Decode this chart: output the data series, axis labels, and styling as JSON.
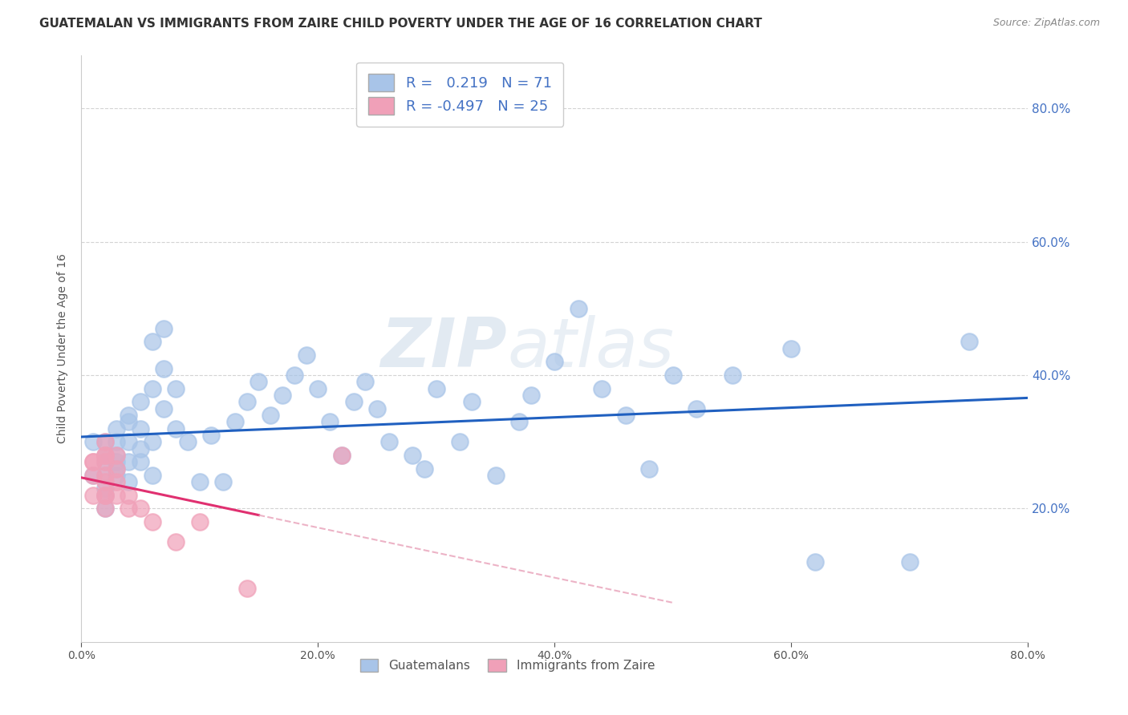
{
  "title": "GUATEMALAN VS IMMIGRANTS FROM ZAIRE CHILD POVERTY UNDER THE AGE OF 16 CORRELATION CHART",
  "source": "Source: ZipAtlas.com",
  "ylabel": "Child Poverty Under the Age of 16",
  "R_guatemalan": 0.219,
  "N_guatemalan": 71,
  "R_zaire": -0.497,
  "N_zaire": 25,
  "guatemalan_color": "#a8c4e8",
  "zaire_color": "#f0a0b8",
  "guatemalan_line_color": "#2060c0",
  "zaire_line_color": "#e03070",
  "zaire_dash_color": "#e8a0b8",
  "background_color": "#ffffff",
  "grid_color": "#c8c8c8",
  "watermark_zip": "ZIP",
  "watermark_atlas": "atlas",
  "xlim": [
    0.0,
    0.8
  ],
  "ylim": [
    0.0,
    0.88
  ],
  "x_ticks": [
    0.0,
    0.2,
    0.4,
    0.6,
    0.8
  ],
  "y_ticks": [
    0.2,
    0.4,
    0.6,
    0.8
  ],
  "guatemalan_x": [
    0.01,
    0.01,
    0.02,
    0.02,
    0.02,
    0.02,
    0.02,
    0.02,
    0.02,
    0.03,
    0.03,
    0.03,
    0.03,
    0.03,
    0.03,
    0.04,
    0.04,
    0.04,
    0.04,
    0.04,
    0.05,
    0.05,
    0.05,
    0.05,
    0.06,
    0.06,
    0.06,
    0.06,
    0.07,
    0.07,
    0.07,
    0.08,
    0.08,
    0.09,
    0.1,
    0.11,
    0.12,
    0.13,
    0.14,
    0.15,
    0.16,
    0.17,
    0.18,
    0.19,
    0.2,
    0.21,
    0.22,
    0.23,
    0.24,
    0.25,
    0.26,
    0.28,
    0.29,
    0.3,
    0.32,
    0.33,
    0.35,
    0.37,
    0.38,
    0.4,
    0.42,
    0.44,
    0.46,
    0.48,
    0.5,
    0.52,
    0.55,
    0.6,
    0.62,
    0.7,
    0.75
  ],
  "guatemalan_y": [
    0.3,
    0.25,
    0.28,
    0.27,
    0.25,
    0.23,
    0.3,
    0.22,
    0.2,
    0.28,
    0.27,
    0.26,
    0.3,
    0.25,
    0.32,
    0.34,
    0.3,
    0.27,
    0.24,
    0.33,
    0.29,
    0.27,
    0.32,
    0.36,
    0.3,
    0.38,
    0.45,
    0.25,
    0.35,
    0.41,
    0.47,
    0.38,
    0.32,
    0.3,
    0.24,
    0.31,
    0.24,
    0.33,
    0.36,
    0.39,
    0.34,
    0.37,
    0.4,
    0.43,
    0.38,
    0.33,
    0.28,
    0.36,
    0.39,
    0.35,
    0.3,
    0.28,
    0.26,
    0.38,
    0.3,
    0.36,
    0.25,
    0.33,
    0.37,
    0.42,
    0.5,
    0.38,
    0.34,
    0.26,
    0.4,
    0.35,
    0.4,
    0.44,
    0.12,
    0.12,
    0.45
  ],
  "zaire_x": [
    0.01,
    0.01,
    0.01,
    0.01,
    0.02,
    0.02,
    0.02,
    0.02,
    0.02,
    0.02,
    0.02,
    0.02,
    0.02,
    0.03,
    0.03,
    0.03,
    0.03,
    0.04,
    0.04,
    0.05,
    0.06,
    0.08,
    0.1,
    0.14,
    0.22
  ],
  "zaire_y": [
    0.27,
    0.27,
    0.25,
    0.22,
    0.3,
    0.28,
    0.27,
    0.25,
    0.24,
    0.22,
    0.2,
    0.22,
    0.28,
    0.28,
    0.26,
    0.24,
    0.22,
    0.22,
    0.2,
    0.2,
    0.18,
    0.15,
    0.18,
    0.08,
    0.28
  ]
}
